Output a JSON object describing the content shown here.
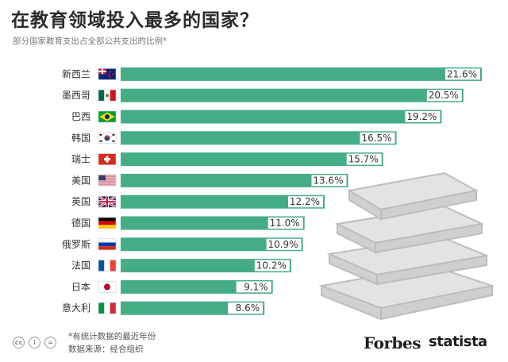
{
  "header": {
    "title": "在教育领域投入最多的国家？",
    "subtitle": "部分国家教育支出占全部公共支出的比例*"
  },
  "footer": {
    "note": "*有统计数据的最近年份",
    "source": "数据来源：经合组织",
    "brand_forbes": "Forbes",
    "brand_statista": "statista"
  },
  "colors": {
    "bar": "#45ad86",
    "background": "#ffffff",
    "text": "#333333"
  },
  "chart_data": {
    "type": "bar",
    "orientation": "horizontal",
    "title": "在教育领域投入最多的国家？",
    "subtitle": "部分国家教育支出占全部公共支出的比例*",
    "categories": [
      "新西兰",
      "墨西哥",
      "巴西",
      "韩国",
      "瑞士",
      "美国",
      "英国",
      "德国",
      "俄罗斯",
      "法国",
      "日本",
      "意大利"
    ],
    "values": [
      21.6,
      20.5,
      19.2,
      16.5,
      15.7,
      13.6,
      12.2,
      11.0,
      10.9,
      10.2,
      9.1,
      8.6
    ],
    "value_labels": [
      "21.6%",
      "20.5%",
      "19.2%",
      "16.5%",
      "15.7%",
      "13.6%",
      "12.2%",
      "11.0%",
      "10.9%",
      "10.2%",
      "9.1%",
      "8.6%"
    ],
    "flags": [
      "nz",
      "mx",
      "br",
      "kr",
      "ch",
      "us",
      "gb",
      "de",
      "ru",
      "fr",
      "jp",
      "it"
    ],
    "unit": "%",
    "xlim": [
      0,
      21.6
    ],
    "grid": false,
    "legend": "none"
  }
}
